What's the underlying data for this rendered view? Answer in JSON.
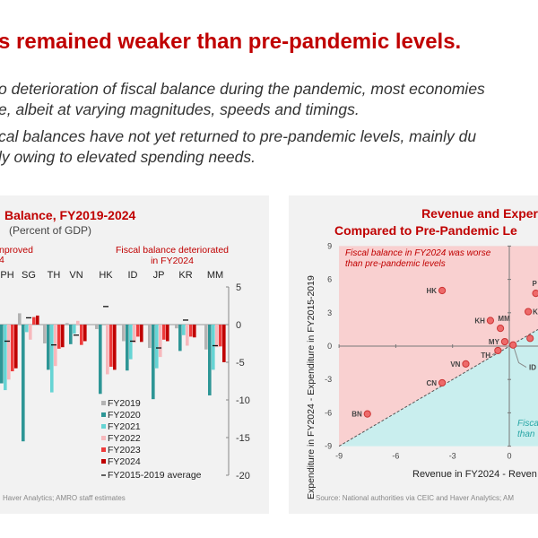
{
  "headline": "s remained weaker than pre-pandemic levels.",
  "bullets": [
    {
      "line1": "o deterioration of fiscal balance during the pandemic, most economies",
      "line2": "e, albeit at varying magnitudes, speeds and timings."
    },
    {
      "line1": "cal balances have not yet returned to pre-pandemic levels, mainly du",
      "line2": "ly owing to elevated spending needs."
    }
  ],
  "colors": {
    "title": "#c00000",
    "panel": "#f2f2f2",
    "FY2019": "#b3b3b3",
    "FY2020": "#2e9696",
    "FY2021": "#66d4d4",
    "FY2022": "#f7b8bc",
    "FY2023": "#ee3b3b",
    "FY2024": "#c00000",
    "worse_region": "#f9d0d0",
    "better_region": "#c9eeee",
    "point": "#ee6a6a"
  },
  "chart_data": [
    {
      "type": "bar",
      "title": "Balance, FY2019-2024",
      "subtitle": "(Percent of GDP)",
      "annotation_left": "nproved",
      "annotation_left2": "4",
      "annotation_right": "Fiscal balance deteriorated",
      "annotation_right2": "in FY2024",
      "categories": [
        "PH",
        "SG",
        "TH",
        "VN",
        "HK",
        "ID",
        "JP",
        "KR",
        "MM"
      ],
      "ylim": [
        -20,
        5
      ],
      "yticks": [
        "5",
        "0",
        "-5",
        "-10",
        "-15",
        "-20"
      ],
      "y_axis_side": "right",
      "legend_placement": "bottom-center",
      "series": [
        {
          "name": "FY2019",
          "values": [
            null,
            1.5,
            -2.5,
            0.2,
            -0.6,
            -2.2,
            -3.1,
            -0.5,
            -3.3
          ]
        },
        {
          "name": "FY2020",
          "values": [
            -7.8,
            -15.5,
            -6.0,
            -2.6,
            -9.2,
            -6.1,
            -9.9,
            -3.5,
            -9.4
          ]
        },
        {
          "name": "FY2021",
          "values": [
            -8.7,
            -1.0,
            -9.0,
            -1.2,
            0.0,
            -4.6,
            -5.8,
            -1.4,
            -6.0
          ]
        },
        {
          "name": "FY2022",
          "values": [
            -7.3,
            -2.0,
            -5.5,
            0.5,
            -6.6,
            -2.4,
            -4.3,
            -2.8,
            -3.0
          ]
        },
        {
          "name": "FY2023",
          "values": [
            -6.2,
            1.0,
            -3.2,
            -2.7,
            -5.6,
            -1.6,
            -2.0,
            -1.6,
            -2.9
          ]
        },
        {
          "name": "FY2024",
          "values": [
            -5.8,
            1.2,
            -3.0,
            -2.2,
            -6.0,
            -2.3,
            -2.2,
            -1.7,
            -5.0
          ]
        }
      ],
      "average": {
        "name": "FY2015-2019 average",
        "values": [
          -2.2,
          0.9,
          -2.7,
          -1.4,
          2.4,
          -2.2,
          -3.1,
          0.6,
          -2.8
        ]
      },
      "source": "Haver Analytics; AMRO staff estimates"
    },
    {
      "type": "scatter",
      "title_line1": "Revenue and Exper",
      "title_line2": "Compared to Pre-Pandemic Le",
      "xlabel": "Revenue in FY2024 - Reven",
      "ylabel": "Expenditure in FY2024 - Expenditure in FY2015-2019",
      "xlim": [
        -9,
        1.5
      ],
      "ylim": [
        -9,
        9
      ],
      "xticks": [
        "-9",
        "-6",
        "-3",
        "0"
      ],
      "yticks": [
        "9",
        "6",
        "3",
        "0",
        "-3",
        "-6",
        "-9"
      ],
      "region_worse": "Fiscal balance in FY2024 was worse",
      "region_worse2": "than pre-pandemic levels",
      "region_better": "Fisca",
      "region_better2": "than",
      "points": [
        {
          "label": "HK",
          "x": -3.55,
          "y": 5.0
        },
        {
          "label": "KH",
          "x": -1.0,
          "y": 2.3
        },
        {
          "label": "MM",
          "x": -0.47,
          "y": 1.6
        },
        {
          "label": "MY",
          "x": -0.24,
          "y": 0.4
        },
        {
          "label": "TH",
          "x": -0.6,
          "y": -0.4
        },
        {
          "label": "ID",
          "x": 0.2,
          "y": 0.1
        },
        {
          "label": "VN",
          "x": -2.3,
          "y": -1.6
        },
        {
          "label": "CN",
          "x": -3.55,
          "y": -3.3
        },
        {
          "label": "BN",
          "x": -7.5,
          "y": -6.1
        },
        {
          "label": "P",
          "x": 1.4,
          "y": 4.75
        },
        {
          "label": "K",
          "x": 1.0,
          "y": 3.1
        },
        {
          "label": "",
          "x": 1.1,
          "y": 0.7
        }
      ],
      "source": "Source: National authorities via CEIC and Haver Analytics; AM"
    }
  ]
}
